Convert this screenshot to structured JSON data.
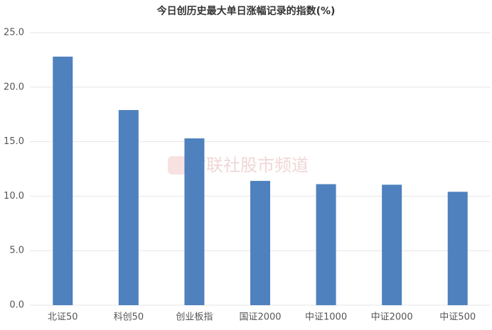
{
  "chart_data": {
    "type": "bar",
    "title": "今日创历史最大单日涨幅记录的指数(%)",
    "watermark": "财联社股市频道",
    "categories": [
      "北证50",
      "科创50",
      "创业板指",
      "国证2000",
      "中证1000",
      "中证2000",
      "中证500"
    ],
    "values": [
      22.8,
      17.9,
      15.3,
      11.4,
      11.1,
      11.05,
      10.4
    ],
    "color": "#4e81bd",
    "ylim": [
      0,
      25
    ],
    "yticks": [
      {
        "value": 0,
        "label": "0.0"
      },
      {
        "value": 5,
        "label": "5.0"
      },
      {
        "value": 10,
        "label": "10.0"
      },
      {
        "value": 15,
        "label": "15.0"
      },
      {
        "value": 20,
        "label": "20.0"
      },
      {
        "value": 25,
        "label": "25.0"
      }
    ],
    "grid": true
  }
}
